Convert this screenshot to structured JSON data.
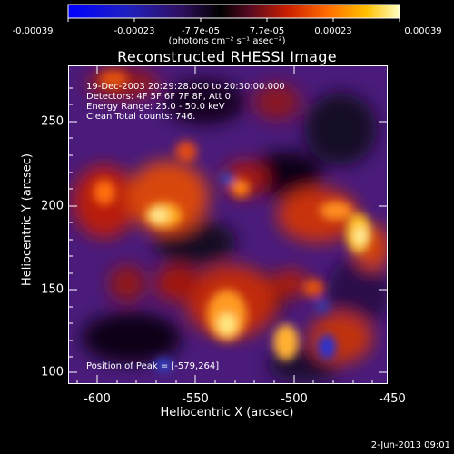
{
  "colorbar": {
    "tick_labels": [
      "-0.00039",
      "-0.00023",
      "-7.7e-05",
      "7.7e-05",
      "0.00023",
      "0.00039"
    ],
    "units": "(photons cm⁻² s⁻¹ asec⁻²)"
  },
  "plot": {
    "title": "Reconstructed RHESSI Image",
    "xlabel": "Heliocentric X (arcsec)",
    "ylabel": "Heliocentric Y (arcsec)",
    "xticks": [
      "-600",
      "-550",
      "-500",
      "-450"
    ],
    "yticks": [
      "250",
      "200",
      "150",
      "100"
    ]
  },
  "info": {
    "time": "19-Dec-2003 20:29:28.000 to 20:30:00.000",
    "detectors": "Detectors: 4F 5F 6F 7F 8F, Att 0",
    "energy": "Energy Range: 25.0 - 50.0 keV",
    "clean": "Clean      Total counts: 746."
  },
  "peak": "Position of Peak = [-579,264]",
  "footer": "2-Jun-2013 09:01"
}
